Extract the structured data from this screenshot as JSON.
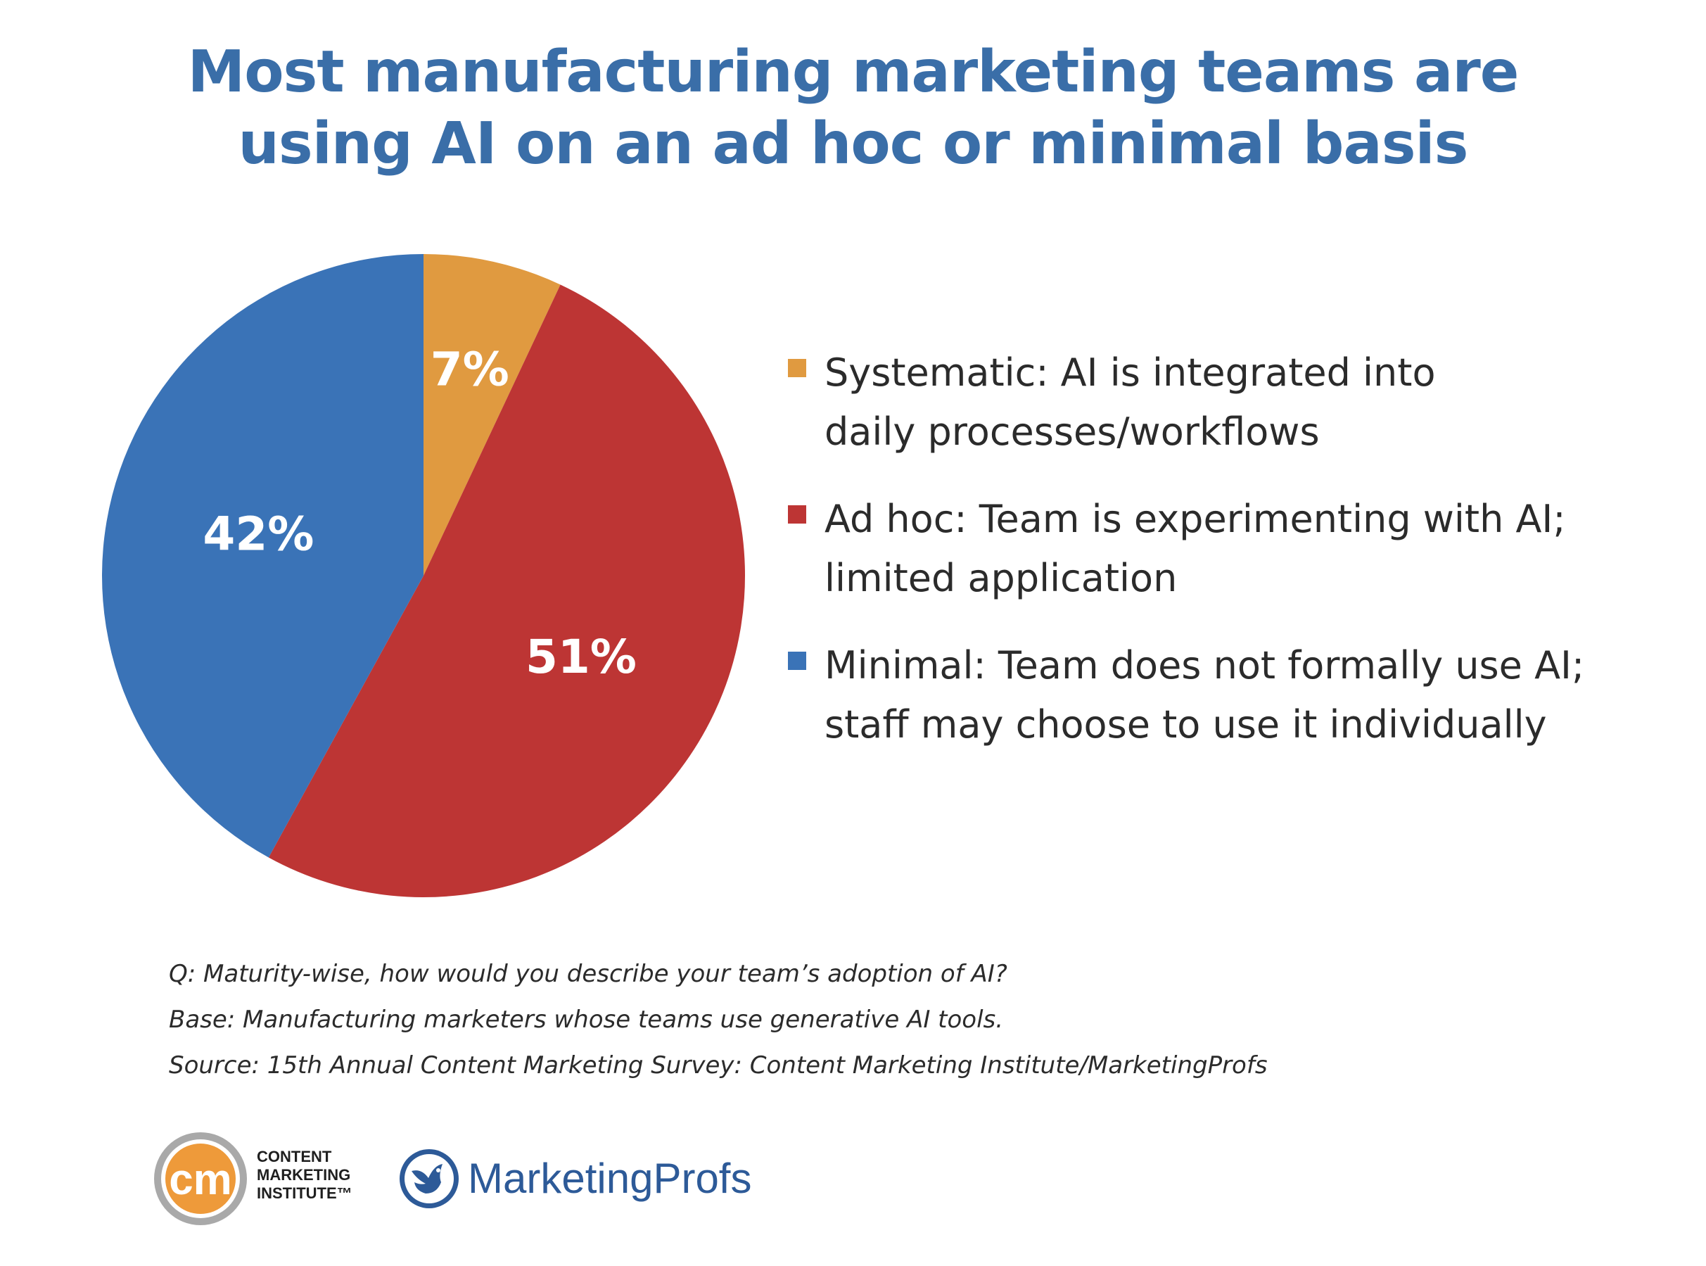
{
  "title": {
    "line1": "Most manufacturing marketing teams are",
    "line2": "using AI on an ad hoc or minimal basis"
  },
  "chart_data": {
    "type": "pie",
    "start_angle_deg": 0,
    "direction": "clockwise",
    "slices": [
      {
        "label": "Systematic: AI is integrated into daily processes/workflows",
        "value": 7,
        "display": "7%",
        "color": "#e09a40"
      },
      {
        "label": "Ad hoc: Team is experimenting with AI; limited application",
        "value": 51,
        "display": "51%",
        "color": "#bd3534"
      },
      {
        "label": "Minimal: Team does not formally use AI; staff may choose to use it individually",
        "value": 42,
        "display": "42%",
        "color": "#3a73b7"
      }
    ],
    "legend_position": "right"
  },
  "legend": [
    {
      "line1": "Systematic: AI is integrated into",
      "line2": "daily processes/workflows",
      "color": "#e09a40"
    },
    {
      "line1": "Ad hoc: Team is experimenting with AI;",
      "line2": "limited application",
      "color": "#bd3534"
    },
    {
      "line1": "Minimal: Team does not formally use AI;",
      "line2": "staff may choose to use it individually",
      "color": "#3a73b7"
    }
  ],
  "notes": {
    "question": "Q: Maturity-wise, how would you describe your team’s adoption of AI?",
    "base": "Base: Manufacturing marketers whose teams use generative AI tools.",
    "source": "Source: 15th Annual Content Marketing Survey: Content Marketing Institute/MarketingProfs"
  },
  "logos": {
    "cmi_mark": "cm",
    "cmi_line1": "CONTENT",
    "cmi_line2": "MARKETING",
    "cmi_line3": "INSTITUTE™",
    "mp_name": "MarketingProfs",
    "mp_icon": "bird-in-circle-icon"
  }
}
